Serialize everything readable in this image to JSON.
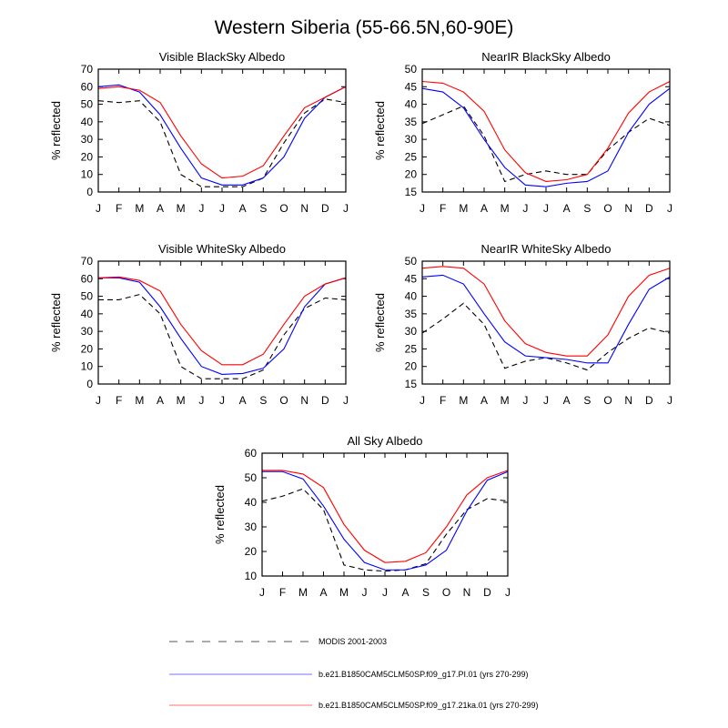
{
  "title": "Western Siberia (55-66.5N,60-90E)",
  "colors": {
    "modis": "#000000",
    "pi": "#0000ff",
    "ka21": "#ff0000"
  },
  "legend": [
    {
      "label": "MODIS 2001-2003",
      "color": "#000000",
      "style": "dashed"
    },
    {
      "label": "b.e21.B1850CAM5CLM50SP.f09_g17.PI.01 (yrs 270-299)",
      "color": "#0000ff",
      "style": "solid"
    },
    {
      "label": "b.e21.B1850CAM5CLM50SP.f09_g17.21ka.01 (yrs 270-299)",
      "color": "#ff0000",
      "style": "solid"
    }
  ],
  "chart_data": [
    {
      "type": "line",
      "title": "Visible BlackSky Albedo",
      "ylabel": "% reflected",
      "categories": [
        "J",
        "F",
        "M",
        "A",
        "M",
        "J",
        "J",
        "A",
        "S",
        "O",
        "N",
        "D",
        "J"
      ],
      "ylim": [
        0,
        70
      ],
      "yticks": [
        0,
        10,
        20,
        30,
        40,
        50,
        60,
        70
      ],
      "series": [
        {
          "name": "MODIS 2001-2003",
          "values": [
            52,
            51,
            52,
            40,
            10,
            3,
            3,
            3,
            8,
            28,
            45,
            53,
            51
          ]
        },
        {
          "name": "b.e21.B1850CAM5CLM50SP.f09_g17.PI.01 (yrs 270-299)",
          "values": [
            60,
            61,
            57,
            44,
            25,
            8,
            4,
            4,
            8,
            20,
            42,
            54,
            60
          ]
        },
        {
          "name": "b.e21.B1850CAM5CLM50SP.f09_g17.21ka.01 (yrs 270-299)",
          "values": [
            59,
            60,
            58,
            51,
            32,
            16,
            8,
            9,
            15,
            32,
            48,
            54,
            60
          ]
        }
      ]
    },
    {
      "type": "line",
      "title": "NearIR BlackSky Albedo",
      "ylabel": "% reflected",
      "categories": [
        "J",
        "F",
        "M",
        "A",
        "M",
        "J",
        "J",
        "A",
        "S",
        "O",
        "N",
        "D",
        "J"
      ],
      "ylim": [
        15,
        50
      ],
      "yticks": [
        15,
        20,
        25,
        30,
        35,
        40,
        45,
        50
      ],
      "series": [
        {
          "name": "MODIS 2001-2003",
          "values": [
            34.5,
            37,
            39.5,
            31,
            18,
            20,
            21,
            20,
            20,
            27,
            32,
            36,
            34
          ]
        },
        {
          "name": "b.e21.B1850CAM5CLM50SP.f09_g17.PI.01 (yrs 270-299)",
          "values": [
            44.5,
            43.5,
            39,
            30,
            22,
            17,
            16.5,
            17.5,
            18,
            21,
            32,
            40,
            44.5
          ]
        },
        {
          "name": "b.e21.B1850CAM5CLM50SP.f09_g17.21ka.01 (yrs 270-299)",
          "values": [
            46.5,
            46,
            43.5,
            38,
            27,
            20.5,
            18,
            18.5,
            20,
            27.5,
            37.5,
            43.5,
            46.5
          ]
        }
      ]
    },
    {
      "type": "line",
      "title": "Visible WhiteSky Albedo",
      "ylabel": "% reflected",
      "categories": [
        "J",
        "F",
        "M",
        "A",
        "M",
        "J",
        "J",
        "A",
        "S",
        "O",
        "N",
        "D",
        "J"
      ],
      "ylim": [
        0,
        70
      ],
      "yticks": [
        0,
        10,
        20,
        30,
        40,
        50,
        60,
        70
      ],
      "series": [
        {
          "name": "MODIS 2001-2003",
          "values": [
            48,
            48,
            51,
            40,
            10,
            3,
            3,
            3,
            8,
            28,
            43,
            49,
            48
          ]
        },
        {
          "name": "b.e21.B1850CAM5CLM50SP.f09_g17.PI.01 (yrs 270-299)",
          "values": [
            60.5,
            60.5,
            58,
            44,
            26,
            10,
            5.5,
            6,
            9,
            20,
            44,
            57,
            60.5
          ]
        },
        {
          "name": "b.e21.B1850CAM5CLM50SP.f09_g17.21ka.01 (yrs 270-299)",
          "values": [
            60.5,
            61,
            59,
            53,
            34,
            19,
            11,
            11,
            17,
            34,
            50,
            57,
            60.5
          ]
        }
      ]
    },
    {
      "type": "line",
      "title": "NearIR WhiteSky Albedo",
      "ylabel": "% reflected",
      "categories": [
        "J",
        "F",
        "M",
        "A",
        "M",
        "J",
        "J",
        "A",
        "S",
        "O",
        "N",
        "D",
        "J"
      ],
      "ylim": [
        15,
        50
      ],
      "yticks": [
        15,
        20,
        25,
        30,
        35,
        40,
        45,
        50
      ],
      "series": [
        {
          "name": "MODIS 2001-2003",
          "values": [
            29.5,
            33.5,
            38,
            32,
            19.5,
            21.5,
            22.5,
            21,
            19,
            24,
            28,
            31,
            29.5
          ]
        },
        {
          "name": "b.e21.B1850CAM5CLM50SP.f09_g17.PI.01 (yrs 270-299)",
          "values": [
            45.5,
            46,
            43.5,
            35,
            27,
            23,
            22.5,
            22,
            21,
            21,
            32,
            42,
            45.5
          ]
        },
        {
          "name": "b.e21.B1850CAM5CLM50SP.f09_g17.21ka.01 (yrs 270-299)",
          "values": [
            48,
            48.5,
            48,
            43.5,
            33,
            26.5,
            24,
            23,
            23,
            29,
            40,
            46,
            48
          ]
        }
      ]
    },
    {
      "type": "line",
      "title": "All Sky Albedo",
      "ylabel": "% reflected",
      "categories": [
        "J",
        "F",
        "M",
        "A",
        "M",
        "J",
        "J",
        "A",
        "S",
        "O",
        "N",
        "D",
        "J"
      ],
      "ylim": [
        10,
        60
      ],
      "yticks": [
        10,
        20,
        30,
        40,
        50,
        60
      ],
      "series": [
        {
          "name": "MODIS 2001-2003",
          "values": [
            40.5,
            42.5,
            45.5,
            37,
            14.5,
            12.5,
            12,
            12.5,
            15,
            27,
            37,
            41.5,
            40.5
          ]
        },
        {
          "name": "b.e21.B1850CAM5CLM50SP.f09_g17.PI.01 (yrs 270-299)",
          "values": [
            52.5,
            52.5,
            49.5,
            38.5,
            25,
            15.5,
            12.5,
            12.5,
            14.5,
            20.5,
            36.5,
            49,
            52.5
          ]
        },
        {
          "name": "b.e21.B1850CAM5CLM50SP.f09_g17.21ka.01 (yrs 270-299)",
          "values": [
            53,
            53,
            51.5,
            46,
            31,
            20.5,
            15.5,
            16,
            19.5,
            30,
            43,
            50,
            53
          ]
        }
      ]
    }
  ]
}
